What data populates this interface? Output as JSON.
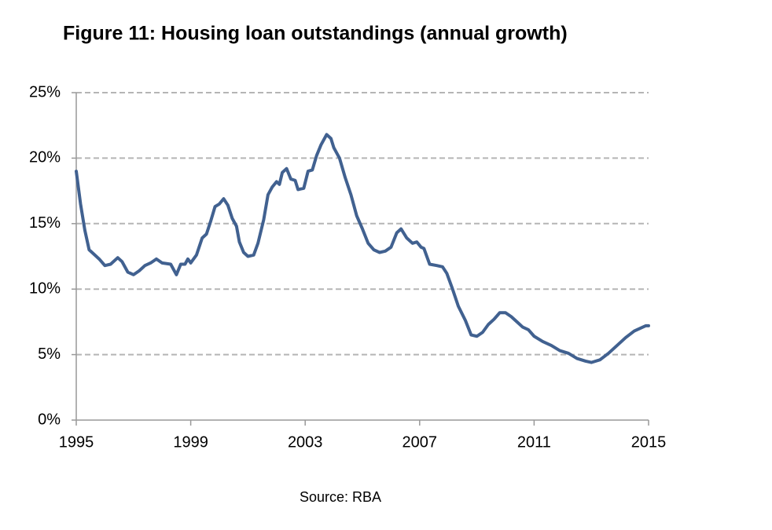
{
  "chart_data": {
    "type": "line",
    "title": "Figure 11: Housing loan outstandings (annual growth)",
    "source": "Source: RBA",
    "x": [
      1995.0,
      1995.15,
      1995.3,
      1995.45,
      1995.6,
      1995.8,
      1996.0,
      1996.2,
      1996.45,
      1996.6,
      1996.8,
      1997.0,
      1997.2,
      1997.4,
      1997.6,
      1997.8,
      1998.0,
      1998.3,
      1998.5,
      1998.65,
      1998.8,
      1998.9,
      1999.0,
      1999.2,
      1999.4,
      1999.55,
      1999.7,
      1999.85,
      2000.0,
      2000.15,
      2000.3,
      2000.45,
      2000.6,
      2000.7,
      2000.85,
      2001.0,
      2001.2,
      2001.35,
      2001.55,
      2001.7,
      2001.85,
      2002.0,
      2002.1,
      2002.2,
      2002.35,
      2002.5,
      2002.65,
      2002.75,
      2002.95,
      2003.1,
      2003.25,
      2003.4,
      2003.55,
      2003.75,
      2003.9,
      2004.0,
      2004.2,
      2004.4,
      2004.6,
      2004.8,
      2005.0,
      2005.2,
      2005.4,
      2005.6,
      2005.8,
      2006.0,
      2006.2,
      2006.35,
      2006.55,
      2006.75,
      2006.9,
      2007.05,
      2007.15,
      2007.35,
      2007.6,
      2007.8,
      2007.95,
      2008.15,
      2008.35,
      2008.6,
      2008.8,
      2009.0,
      2009.2,
      2009.4,
      2009.6,
      2009.8,
      2010.0,
      2010.2,
      2010.4,
      2010.6,
      2010.8,
      2011.0,
      2011.3,
      2011.6,
      2011.9,
      2012.2,
      2012.5,
      2012.8,
      2013.0,
      2013.3,
      2013.6,
      2013.9,
      2014.2,
      2014.5,
      2014.8,
      2014.9,
      2015.0
    ],
    "series": [
      {
        "name": "Housing loan outstandings",
        "color": "#416190",
        "values": [
          19.0,
          16.5,
          14.5,
          13.0,
          12.7,
          12.3,
          11.8,
          11.9,
          12.4,
          12.1,
          11.3,
          11.1,
          11.4,
          11.8,
          12.0,
          12.3,
          12.0,
          11.9,
          11.1,
          11.9,
          11.9,
          12.3,
          12.0,
          12.6,
          13.9,
          14.2,
          15.2,
          16.3,
          16.5,
          16.9,
          16.4,
          15.4,
          14.8,
          13.6,
          12.8,
          12.5,
          12.6,
          13.5,
          15.3,
          17.2,
          17.8,
          18.2,
          18.0,
          18.9,
          19.2,
          18.4,
          18.3,
          17.6,
          17.7,
          19.0,
          19.1,
          20.2,
          21.0,
          21.8,
          21.5,
          20.8,
          20.0,
          18.5,
          17.2,
          15.6,
          14.6,
          13.5,
          13.0,
          12.8,
          12.9,
          13.2,
          14.3,
          14.6,
          13.9,
          13.5,
          13.6,
          13.2,
          13.1,
          11.9,
          11.8,
          11.7,
          11.2,
          10.0,
          8.7,
          7.6,
          6.5,
          6.4,
          6.7,
          7.3,
          7.7,
          8.2,
          8.2,
          7.9,
          7.5,
          7.1,
          6.9,
          6.4,
          6.0,
          5.7,
          5.3,
          5.1,
          4.7,
          4.5,
          4.4,
          4.6,
          5.1,
          5.7,
          6.3,
          6.8,
          7.1,
          7.2,
          7.2
        ]
      }
    ],
    "xlim": [
      1995,
      2015
    ],
    "xticks": [
      1995,
      1999,
      2003,
      2007,
      2011,
      2015
    ],
    "ylim": [
      0,
      25
    ],
    "yticks": [
      {
        "value": 0,
        "label": "0%"
      },
      {
        "value": 5,
        "label": "5%"
      },
      {
        "value": 10,
        "label": "10%"
      },
      {
        "value": 15,
        "label": "15%"
      },
      {
        "value": 20,
        "label": "20%"
      },
      {
        "value": 25,
        "label": "25%"
      }
    ],
    "grid": true
  }
}
